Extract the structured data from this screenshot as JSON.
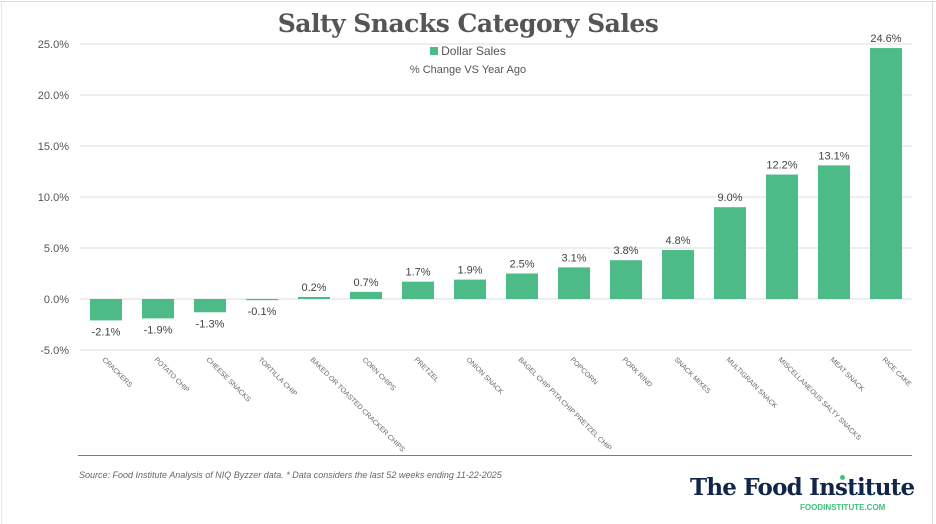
{
  "chart_data": {
    "type": "bar",
    "title": "Salty Snacks Category Sales",
    "subtitle": "% Change VS Year Ago",
    "legend": [
      {
        "name": "Dollar Sales",
        "color": "#4cbb87"
      }
    ],
    "legend_position": "top-center",
    "xlabel": "",
    "ylabel": "",
    "ylim": [
      -5,
      25
    ],
    "y_ticks": [
      -5,
      0,
      5,
      10,
      15,
      20,
      25
    ],
    "y_tick_labels": [
      "-5.0%",
      "0.0%",
      "5.0%",
      "10.0%",
      "15.0%",
      "20.0%",
      "25.0%"
    ],
    "grid": true,
    "categories": [
      "CRACKERS",
      "POTATO CHIP",
      "CHEESE SNACKS",
      "TORTILLA CHIP",
      "BAKED OR TOASTED CRACKER CHIPS",
      "CORN CHIPS",
      "PRETZEL",
      "ONION SNACK",
      "BAGEL CHIP PITA CHIP PRETZEL CHIP",
      "POPCORN",
      "PORK RIND",
      "SNACK MIXES",
      "MULTIGRAIN SNACK",
      "MISCELLANEOUS SALTY SNACKS",
      "MEAT SNACK",
      "RICE CAKE"
    ],
    "series": [
      {
        "name": "Dollar Sales",
        "color": "#4cbb87",
        "values": [
          -2.1,
          -1.9,
          -1.3,
          -0.1,
          0.2,
          0.7,
          1.7,
          1.9,
          2.5,
          3.1,
          3.8,
          4.8,
          9.0,
          12.2,
          13.1,
          24.6
        ],
        "data_labels": [
          "-2.1%",
          "-1.9%",
          "-1.3%",
          "-0.1%",
          "0.2%",
          "0.7%",
          "1.7%",
          "1.9%",
          "2.5%",
          "3.1%",
          "3.8%",
          "4.8%",
          "9.0%",
          "12.2%",
          "13.1%",
          "24.6%"
        ]
      }
    ]
  },
  "footer": {
    "source": "Source: Food Institute Analysis of NIQ Byzzer data. * Data considers the last 52 weeks ending 11-22-2025",
    "brand": "The Food Institute",
    "brand_url": "FOODINSTITUTE.COM"
  }
}
